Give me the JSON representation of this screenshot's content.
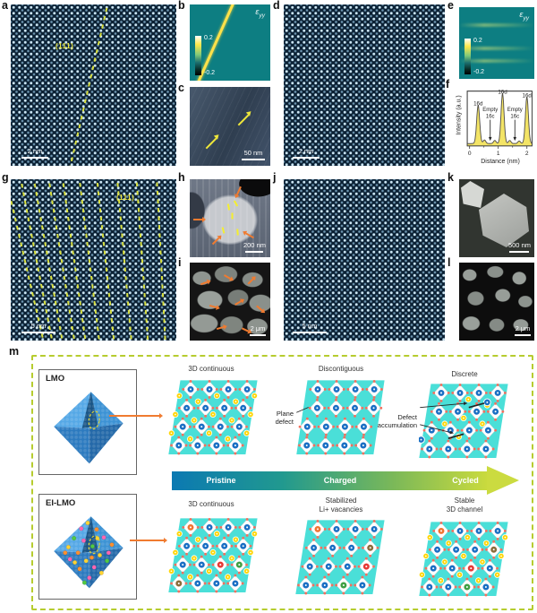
{
  "panel_a": {
    "label": "a",
    "plane_label": "(111)",
    "scalebar": "2 nm"
  },
  "panel_b": {
    "label": "b",
    "eps": "ε",
    "eps_sub": "yy",
    "cbar_max": "0.2",
    "cbar_min": "-0.2"
  },
  "panel_c": {
    "label": "c",
    "scalebar": "50 nm"
  },
  "panel_d": {
    "label": "d",
    "scalebar": "2 nm"
  },
  "panel_e": {
    "label": "e",
    "eps": "ε",
    "eps_sub": "yy",
    "cbar_max": "0.2",
    "cbar_min": "-0.2"
  },
  "panel_f": {
    "label": "f",
    "ylabel": "Intensity (a.u.)",
    "xlabel": "Distance (nm)"
  },
  "panel_g": {
    "label": "g",
    "plane_label": "(111)",
    "scalebar": "5 nm"
  },
  "panel_h": {
    "label": "h",
    "scalebar": "200 nm"
  },
  "panel_i": {
    "label": "i",
    "scalebar": "2 μm"
  },
  "panel_j": {
    "label": "j",
    "scalebar": "5 nm"
  },
  "panel_k": {
    "label": "k",
    "scalebar": "500 nm"
  },
  "panel_l": {
    "label": "l",
    "scalebar": "2 μm"
  },
  "panel_m": {
    "label": "m",
    "lmo_label": "LMO",
    "eilmo_label": "EI-LMO",
    "top_titles": [
      "3D continuous",
      "Discontiguous",
      "Discrete"
    ],
    "bottom_titles_1": [
      "3D continuous",
      "Stabilized",
      "Stable"
    ],
    "bottom_titles_2": [
      "",
      "Li+ vacancies",
      "3D channel"
    ],
    "plane_defect_1": "Plane",
    "plane_defect_2": "defect",
    "defect_acc_1": "Defect",
    "defect_acc_2": "accumulation",
    "arrow_stages": [
      "Pristine",
      "Charged",
      "Cycled"
    ],
    "colors": {
      "cyan": "#4adfd8",
      "blue": "#1a6fc4",
      "yellow": "#ffd60a",
      "red_dot": "#f2705e",
      "orange": "#f07430",
      "red": "#e53935",
      "green": "#3fa044",
      "brown": "#8a6d3b"
    },
    "octahedron": {
      "faces": [
        "#55a8e6",
        "#3c92d4",
        "#2c7abf",
        "#2368a8",
        "#1a5586"
      ],
      "dot_colors": {
        "p": "#ff66b2",
        "y": "#ffd335",
        "g": "#52c943",
        "o": "#ff9030"
      },
      "ei_dots": [
        [
          50,
          15,
          "y"
        ],
        [
          42,
          22,
          "p"
        ],
        [
          61,
          23,
          "o"
        ],
        [
          33,
          34,
          "g"
        ],
        [
          70,
          33,
          "p"
        ],
        [
          26,
          45,
          "y"
        ],
        [
          80,
          42,
          "o"
        ],
        [
          45,
          37,
          "p"
        ],
        [
          56,
          44,
          "g"
        ],
        [
          38,
          52,
          "o"
        ],
        [
          65,
          55,
          "y"
        ],
        [
          28,
          60,
          "p"
        ],
        [
          74,
          62,
          "g"
        ],
        [
          48,
          62,
          "y"
        ],
        [
          58,
          70,
          "p"
        ],
        [
          40,
          72,
          "o"
        ],
        [
          67,
          77,
          "y"
        ],
        [
          52,
          83,
          "p"
        ],
        [
          34,
          64,
          "y"
        ],
        [
          62,
          34,
          "y"
        ],
        [
          22,
          52,
          "o"
        ],
        [
          46,
          89,
          "g"
        ],
        [
          76,
          52,
          "p"
        ],
        [
          55,
          58,
          "o"
        ]
      ]
    },
    "lattices": {
      "pristine": {
        "li": "full",
        "rowShift": [
          0,
          0,
          0,
          0
        ],
        "special": []
      },
      "discontiguous": {
        "li": "none",
        "rowShift": [
          0,
          4,
          -3,
          1
        ],
        "special": [],
        "anno": [
          [
            1,
            40,
            15,
            34,
            false,
            0.8
          ]
        ]
      },
      "discrete": {
        "li": "partial",
        "rowShift": [
          0,
          2,
          -2,
          0
        ],
        "liCells": [
          [
            0,
            2
          ],
          [
            0,
            3
          ],
          [
            1,
            1
          ],
          [
            1,
            2
          ],
          [
            1,
            3
          ],
          [
            2,
            2
          ]
        ],
        "extraBlue": [
          [
            0,
            3
          ],
          [
            2,
            0
          ]
        ],
        "special": [],
        "anno": [
          [
            1,
            30,
            56,
            25,
            true,
            0.9
          ],
          [
            1,
            50,
            40,
            60,
            true,
            0.9
          ],
          [
            58,
            30,
            76,
            25,
            false,
            1.8
          ],
          [
            34,
            66,
            52,
            61,
            false,
            1.8
          ]
        ]
      },
      "ei_pristine": {
        "li": "full",
        "rowShift": [
          0,
          0,
          0,
          0
        ],
        "special": [
          [
            0,
            0,
            "orange"
          ],
          [
            2,
            2,
            "red"
          ],
          [
            2,
            3,
            "green"
          ],
          [
            3,
            0,
            "brown"
          ]
        ]
      },
      "stabilized": {
        "li": "none",
        "rowShift": [
          0,
          0,
          0,
          0
        ],
        "special": [
          [
            0,
            0,
            "orange"
          ],
          [
            1,
            3,
            "brown"
          ],
          [
            2,
            3,
            "red"
          ],
          [
            3,
            2,
            "green"
          ]
        ]
      },
      "stable": {
        "li": "full",
        "rowShift": [
          0,
          0,
          0,
          0
        ],
        "special": [
          [
            0,
            0,
            "orange"
          ],
          [
            1,
            3,
            "brown"
          ],
          [
            2,
            2,
            "red"
          ],
          [
            3,
            2,
            "green"
          ]
        ]
      }
    }
  },
  "chart_data": {
    "type": "line",
    "title": "",
    "xlabel": "Distance (nm)",
    "ylabel": "Intensity (a.u.)",
    "xlim": [
      -0.08,
      2.18
    ],
    "xticks": [
      0,
      1,
      2
    ],
    "xticks_minor": [
      0.5,
      1.5
    ],
    "peaks": [
      {
        "x": 0.3,
        "h": 0.74,
        "label": "16d"
      },
      {
        "x": 1.15,
        "h": 0.97,
        "label": "16d"
      },
      {
        "x": 2.0,
        "h": 0.9,
        "label": "16d"
      }
    ],
    "dips": [
      {
        "x": 0.72,
        "label": "Empty 16c"
      },
      {
        "x": 1.58,
        "label": "Empty 16c"
      }
    ],
    "minor_bumps": [
      {
        "x": 0.52,
        "h": 0.07
      },
      {
        "x": 0.88,
        "h": 0.06
      },
      {
        "x": 1.4,
        "h": 0.06
      },
      {
        "x": 1.73,
        "h": 0.05
      }
    ],
    "fill_color": "#f3e466",
    "line_color": "#55524a",
    "grid": false,
    "legend_position": "none"
  }
}
